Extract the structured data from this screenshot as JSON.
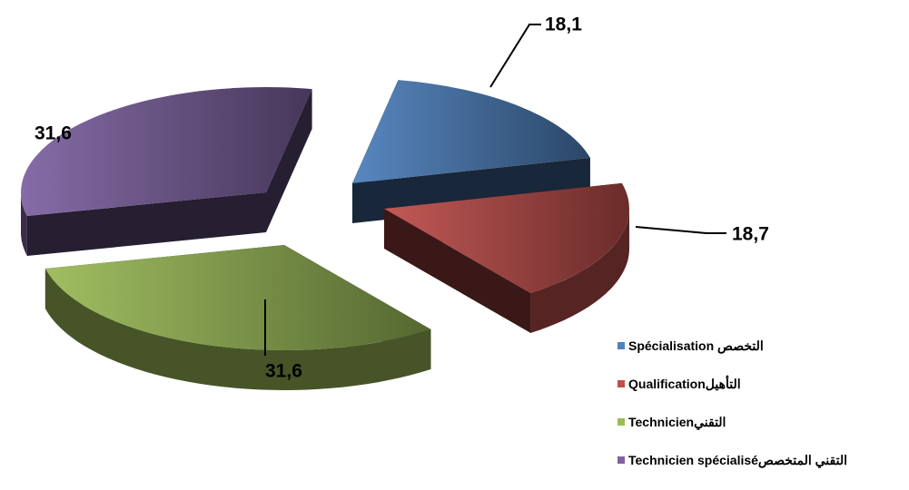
{
  "chart_data": {
    "type": "pie",
    "style": "3d-exploded",
    "categories": [
      "Spécialisation التخصص",
      "Qualificationالتأهيل",
      "Technicienالتقني",
      "Technicien spécialiséالتقني المتخصص"
    ],
    "values": [
      18.1,
      18.7,
      31.6,
      31.6
    ],
    "data_labels": [
      "18,1",
      "18,7",
      "31,6",
      "31,6"
    ],
    "colors": [
      "#4F81BD",
      "#C0504D",
      "#9BBB59",
      "#8064A2"
    ],
    "legend_position": "bottom-right"
  }
}
